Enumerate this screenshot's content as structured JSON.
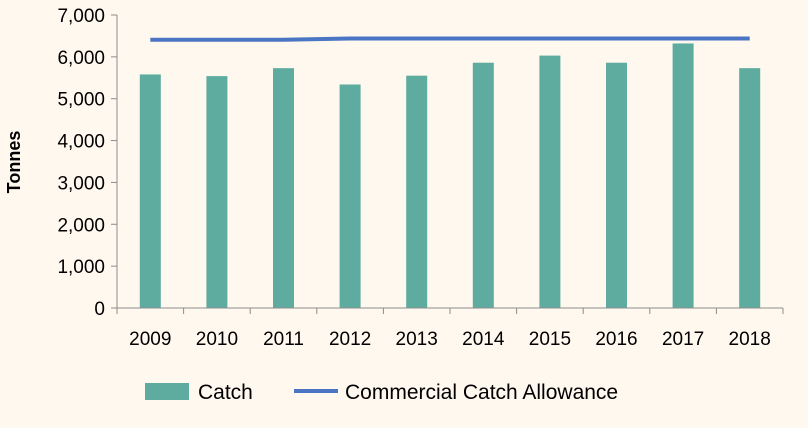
{
  "chart_data": {
    "type": "bar",
    "title": "",
    "xlabel": "",
    "ylabel": "Tonnes",
    "ylim": [
      0,
      7000
    ],
    "y_ticks": [
      0,
      1000,
      2000,
      3000,
      4000,
      5000,
      6000,
      7000
    ],
    "y_tick_labels": [
      "0",
      "1,000",
      "2,000",
      "3,000",
      "4,000",
      "5,000",
      "6,000",
      "7,000"
    ],
    "categories": [
      "2009",
      "2010",
      "2011",
      "2012",
      "2013",
      "2014",
      "2015",
      "2016",
      "2017",
      "2018"
    ],
    "series": [
      {
        "name": "Catch",
        "kind": "bar",
        "color": "#5eaba0",
        "values": [
          5580,
          5540,
          5730,
          5340,
          5550,
          5860,
          6030,
          5860,
          6320,
          5730
        ]
      },
      {
        "name": "Commercial Catch Allowance",
        "kind": "line",
        "color": "#4a74c4",
        "values": [
          6410,
          6410,
          6410,
          6440,
          6440,
          6440,
          6440,
          6440,
          6440,
          6440
        ]
      }
    ],
    "grid": false,
    "legend": "bottom"
  }
}
